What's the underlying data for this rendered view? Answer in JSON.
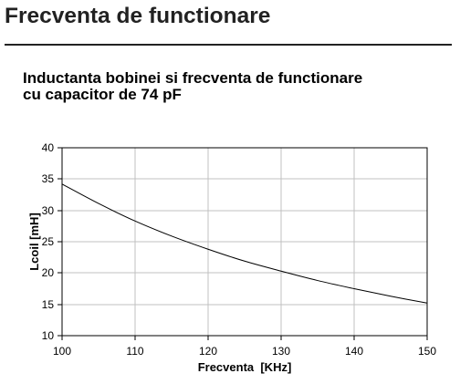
{
  "page": {
    "heading": "Frecventa de functionare"
  },
  "theme": {
    "text": "#222222",
    "rule": "#222222"
  },
  "chart_data": {
    "type": "line",
    "title": [
      "Inductanta bobinei si frecventa de functionare",
      "cu capacitor de 74 pF"
    ],
    "xlabel": "Frecventa  [KHz]",
    "ylabel": "Lcoil [mH]",
    "xlim": [
      100,
      150
    ],
    "ylim": [
      10,
      40
    ],
    "xticks": [
      100,
      110,
      120,
      130,
      140,
      150
    ],
    "yticks": [
      10,
      15,
      20,
      25,
      30,
      35,
      40
    ],
    "grid": true,
    "x": [
      100,
      105,
      110,
      115,
      120,
      125,
      130,
      135,
      140,
      145,
      150
    ],
    "series": [
      {
        "values": [
          34.2,
          31.1,
          28.3,
          25.9,
          23.8,
          21.9,
          20.3,
          18.8,
          17.5,
          16.3,
          15.2
        ]
      }
    ],
    "colors": {
      "line": "#000000",
      "grid": "#c0c0c0",
      "frame": "#000000"
    }
  }
}
